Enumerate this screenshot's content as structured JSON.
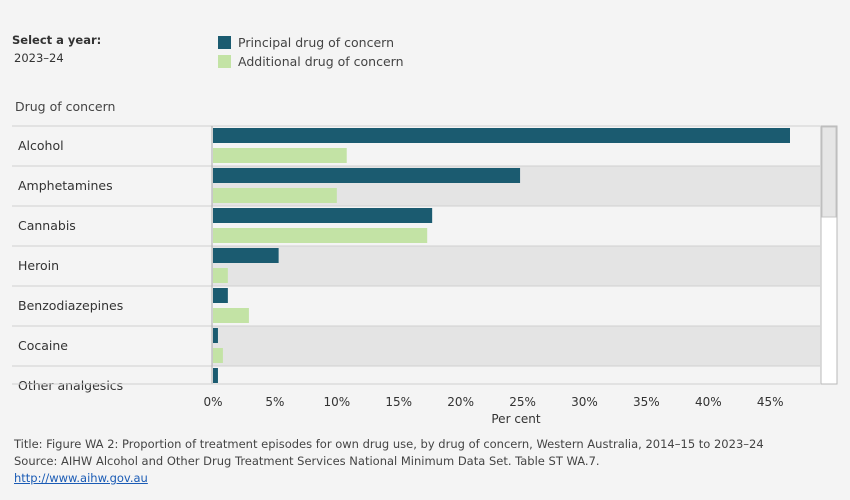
{
  "filter": {
    "label": "Select a year:",
    "value": "2023–24"
  },
  "legend": [
    {
      "label": "Principal drug of concern",
      "color": "#1b5b70"
    },
    {
      "label": "Additional drug of concern",
      "color": "#c3e3a5"
    }
  ],
  "row_header": "Drug of concern",
  "chart_data": {
    "type": "bar",
    "orientation": "horizontal",
    "categories": [
      "Alcohol",
      "Amphetamines",
      "Cannabis",
      "Heroin",
      "Benzodiazepines",
      "Cocaine",
      "Other analgesics"
    ],
    "series": [
      {
        "name": "Principal drug of concern",
        "values": [
          46.6,
          24.8,
          17.7,
          5.3,
          1.2,
          0.4,
          0.4
        ]
      },
      {
        "name": "Additional drug of concern",
        "values": [
          10.8,
          10.0,
          17.3,
          1.2,
          2.9,
          0.8,
          null
        ]
      }
    ],
    "xlabel": "Per cent",
    "xlim": [
      0,
      49
    ],
    "xticks": [
      0,
      5,
      10,
      15,
      20,
      25,
      30,
      35,
      40,
      45
    ],
    "xtick_labels": [
      "0%",
      "5%",
      "10%",
      "15%",
      "20%",
      "25%",
      "30%",
      "35%",
      "40%",
      "45%"
    ],
    "row_shading": "alternating"
  },
  "footer": {
    "title": "Title: Figure WA 2: Proportion of treatment episodes for own drug use, by drug of concern, Western Australia, 2014–15 to 2023–24",
    "source": "Source: AIHW Alcohol and Other Drug Treatment Services National Minimum Data Set. Table ST WA.7.",
    "link": "http://www.aihw.gov.au"
  }
}
